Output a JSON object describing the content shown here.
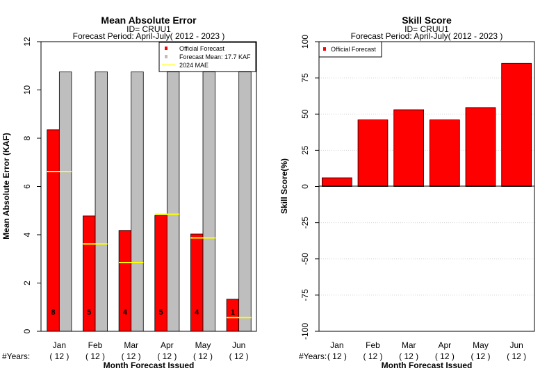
{
  "chart_data": [
    {
      "type": "bar",
      "title": "Mean Absolute Error",
      "subtitle1": "ID= CRUU1",
      "subtitle2": "Forecast Period: April-July( 2012 - 2023 )",
      "ylabel": "Mean Absolute Error (KAF)",
      "xlabel": "Month Forecast Issued",
      "ylim": [
        0,
        12
      ],
      "yticks": [
        "0",
        "2",
        "4",
        "6",
        "8",
        "10",
        "12"
      ],
      "categories": [
        "Jan",
        "Feb",
        "Mar",
        "Apr",
        "May",
        "Jun"
      ],
      "years_prefix": "#Years:",
      "years": [
        "( 12 )",
        "( 12 )",
        "( 12 )",
        "( 12 )",
        "( 12 )",
        "( 12 )"
      ],
      "series": [
        {
          "name": "Official Forecast",
          "color": "#ff0000",
          "values": [
            8.35,
            4.78,
            4.18,
            4.8,
            4.03,
            1.33
          ]
        },
        {
          "name": "Forecast Mean: 17.7 KAF",
          "color": "#bebebe",
          "values": [
            10.75,
            10.75,
            10.75,
            10.75,
            10.75,
            10.75
          ]
        }
      ],
      "mae_2024": {
        "name": " 2024  MAE",
        "color": "#ffff00",
        "values": [
          6.62,
          3.62,
          2.85,
          4.85,
          3.87,
          0.57
        ]
      },
      "bar_labels": [
        "8",
        "5",
        "4",
        "5",
        "4",
        "1"
      ],
      "legend_position": "top-right"
    },
    {
      "type": "bar",
      "title": "Skill Score",
      "subtitle1": "ID= CRUU1",
      "subtitle2": "Forecast Period: April-July( 2012 - 2023 )",
      "ylabel": "Skill Score(%)",
      "xlabel": "Month Forecast Issued",
      "ylim": [
        -100,
        100
      ],
      "yticks": [
        "-100",
        "-75",
        "-50",
        "-25",
        "0",
        "25",
        "50",
        "75",
        "100"
      ],
      "categories": [
        "Jan",
        "Feb",
        "Mar",
        "Apr",
        "May",
        "Jun"
      ],
      "years_prefix": "#Years:",
      "years": [
        "( 12 )",
        "( 12 )",
        "( 12 )",
        "( 12 )",
        "( 12 )",
        "( 12 )"
      ],
      "series": [
        {
          "name": "Official Forecast",
          "color": "#ff0000",
          "values": [
            6,
            46,
            53,
            46,
            54.5,
            85
          ]
        }
      ],
      "grid": true,
      "legend_position": "top-left"
    }
  ]
}
